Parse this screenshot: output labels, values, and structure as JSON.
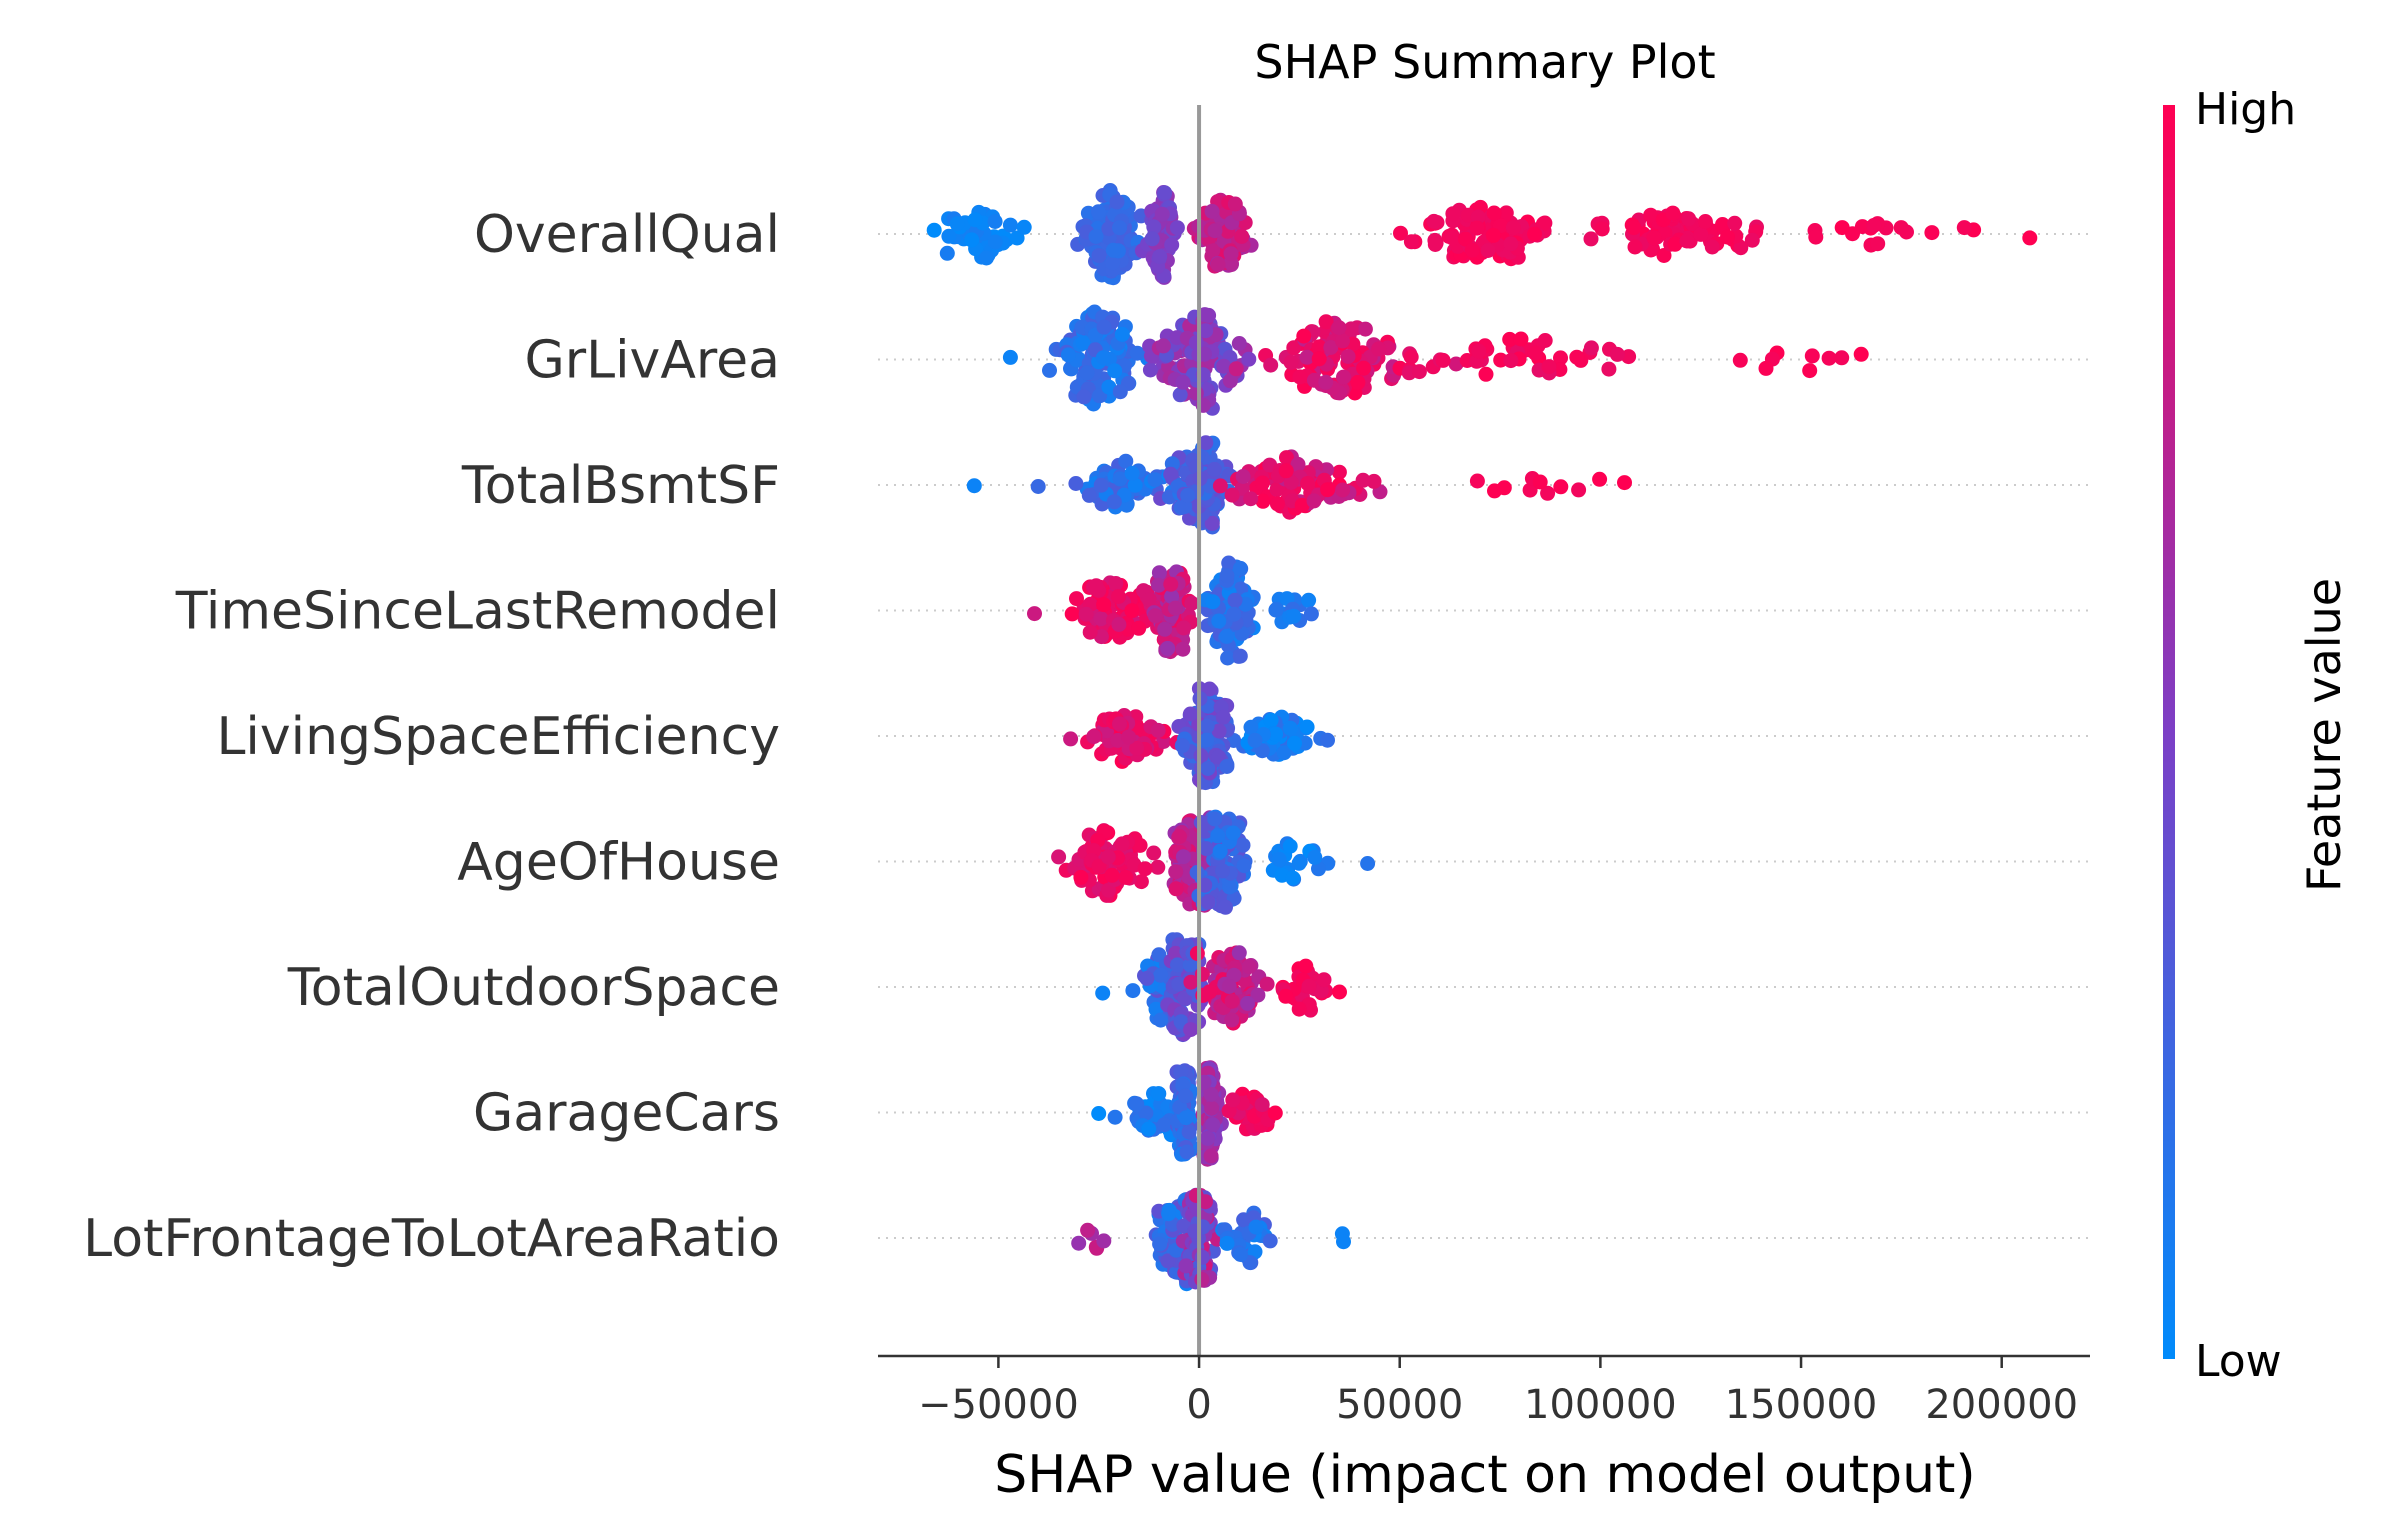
{
  "chart_data": {
    "type": "scatter",
    "subtype": "beeswarm",
    "title": "SHAP Summary Plot",
    "xlabel": "SHAP value (impact on model output)",
    "xlim": [
      -80000,
      222000
    ],
    "xticks": [
      -50000,
      0,
      50000,
      100000,
      150000,
      200000
    ],
    "xtick_labels": [
      "−50000",
      "0",
      "50000",
      "100000",
      "150000",
      "200000"
    ],
    "zero_line": 0,
    "colorbar": {
      "label": "Feature value",
      "high_label": "High",
      "low_label": "Low",
      "low_color": "#008bfb",
      "mid_color": "#7c3fc6",
      "high_color": "#ff0052"
    },
    "features": [
      {
        "name": "OverallQual",
        "min": -66000,
        "max": 207000,
        "spread": 0.4,
        "band_width": 0.35,
        "clusters": [
          {
            "c": -55000,
            "s": 9000,
            "n": 40,
            "v": [
              0.0,
              0.1
            ]
          },
          {
            "c": -22000,
            "s": 5500,
            "n": 110,
            "v": [
              0.15,
              0.3
            ]
          },
          {
            "c": -9000,
            "s": 3000,
            "n": 70,
            "v": [
              0.4,
              0.6
            ]
          },
          {
            "c": 6000,
            "s": 5500,
            "n": 80,
            "v": [
              0.65,
              0.9
            ]
          },
          {
            "c": 68000,
            "s": 14000,
            "n": 100,
            "v": [
              0.92,
              1.0
            ]
          },
          {
            "c": 120000,
            "s": 18000,
            "n": 70,
            "v": [
              0.92,
              1.0
            ]
          },
          {
            "c": 168000,
            "s": 20000,
            "n": 16,
            "v": [
              0.95,
              1.0
            ]
          }
        ]
      },
      {
        "name": "GrLivArea",
        "min": -47000,
        "max": 165000,
        "spread": 0.42,
        "band_width": 0.4,
        "clusters": [
          {
            "c": -25000,
            "s": 8000,
            "n": 120,
            "v": [
              0.05,
              0.3
            ]
          },
          {
            "c": 0,
            "s": 9000,
            "n": 130,
            "v": [
              0.35,
              0.7
            ]
          },
          {
            "c": 35000,
            "s": 14000,
            "n": 110,
            "v": [
              0.75,
              1.0
            ]
          },
          {
            "c": 85000,
            "s": 20000,
            "n": 40,
            "v": [
              0.9,
              1.0
            ]
          },
          {
            "c": 145000,
            "s": 15000,
            "n": 8,
            "v": [
              0.95,
              1.0
            ]
          }
        ]
      },
      {
        "name": "TotalBsmtSF",
        "min": -56000,
        "max": 106000,
        "spread": 0.38,
        "band_width": 0.35,
        "clusters": [
          {
            "c": -20000,
            "s": 12000,
            "n": 60,
            "v": [
              0.05,
              0.3
            ]
          },
          {
            "c": 0,
            "s": 6000,
            "n": 130,
            "v": [
              0.15,
              0.45
            ]
          },
          {
            "c": 25000,
            "s": 14000,
            "n": 100,
            "v": [
              0.75,
              1.0
            ]
          },
          {
            "c": 85000,
            "s": 15000,
            "n": 10,
            "v": [
              0.95,
              1.0
            ]
          }
        ]
      },
      {
        "name": "TimeSinceLastRemodel",
        "min": -41000,
        "max": 28000,
        "spread": 0.42,
        "band_width": 0.38,
        "clusters": [
          {
            "c": -20000,
            "s": 9000,
            "n": 80,
            "v": [
              0.8,
              1.0
            ]
          },
          {
            "c": -7000,
            "s": 3500,
            "n": 90,
            "v": [
              0.6,
              0.95
            ]
          },
          {
            "c": 8000,
            "s": 5000,
            "n": 110,
            "v": [
              0.05,
              0.3
            ]
          },
          {
            "c": 22000,
            "s": 4000,
            "n": 15,
            "v": [
              0.05,
              0.2
            ]
          }
        ]
      },
      {
        "name": "LivingSpaceEfficiency",
        "min": -32000,
        "max": 32000,
        "spread": 0.4,
        "band_width": 0.38,
        "clusters": [
          {
            "c": -18000,
            "s": 8000,
            "n": 70,
            "v": [
              0.8,
              1.0
            ]
          },
          {
            "c": 2000,
            "s": 4500,
            "n": 150,
            "v": [
              0.2,
              0.5
            ]
          },
          {
            "c": 20000,
            "s": 7000,
            "n": 50,
            "v": [
              0.0,
              0.2
            ]
          }
        ]
      },
      {
        "name": "AgeOfHouse",
        "min": -35000,
        "max": 42000,
        "spread": 0.4,
        "band_width": 0.38,
        "clusters": [
          {
            "c": -22000,
            "s": 8000,
            "n": 80,
            "v": [
              0.85,
              1.0
            ]
          },
          {
            "c": -2000,
            "s": 4000,
            "n": 80,
            "v": [
              0.6,
              0.9
            ]
          },
          {
            "c": 6000,
            "s": 4500,
            "n": 110,
            "v": [
              0.1,
              0.4
            ]
          },
          {
            "c": 25000,
            "s": 9000,
            "n": 20,
            "v": [
              0.0,
              0.15
            ]
          }
        ]
      },
      {
        "name": "TotalOutdoorSpace",
        "min": -24000,
        "max": 35000,
        "spread": 0.4,
        "band_width": 0.38,
        "clusters": [
          {
            "c": -8000,
            "s": 6000,
            "n": 70,
            "v": [
              0.05,
              0.4
            ]
          },
          {
            "c": -3000,
            "s": 3000,
            "n": 80,
            "v": [
              0.25,
              0.55
            ]
          },
          {
            "c": 8000,
            "s": 6000,
            "n": 80,
            "v": [
              0.6,
              0.95
            ]
          },
          {
            "c": 25000,
            "s": 5000,
            "n": 30,
            "v": [
              0.9,
              1.0
            ]
          }
        ]
      },
      {
        "name": "GarageCars",
        "min": -25000,
        "max": 19000,
        "spread": 0.42,
        "band_width": 0.38,
        "clusters": [
          {
            "c": -12000,
            "s": 5000,
            "n": 40,
            "v": [
              0.0,
              0.2
            ]
          },
          {
            "c": -3500,
            "s": 1500,
            "n": 130,
            "v": [
              0.1,
              0.35
            ]
          },
          {
            "c": 3000,
            "s": 1500,
            "n": 120,
            "v": [
              0.5,
              0.75
            ]
          },
          {
            "c": 13000,
            "s": 3500,
            "n": 30,
            "v": [
              0.85,
              1.0
            ]
          }
        ]
      },
      {
        "name": "LotFrontageToLotAreaRatio",
        "min": -30000,
        "max": 36000,
        "spread": 0.4,
        "band_width": 0.38,
        "clusters": [
          {
            "c": -25000,
            "s": 4000,
            "n": 5,
            "v": [
              0.6,
              0.9
            ]
          },
          {
            "c": -6000,
            "s": 4500,
            "n": 80,
            "v": [
              0.05,
              0.4
            ]
          },
          {
            "c": 0,
            "s": 3000,
            "n": 120,
            "v": [
              0.3,
              0.85
            ]
          },
          {
            "c": 12000,
            "s": 5000,
            "n": 40,
            "v": [
              0.05,
              0.3
            ]
          },
          {
            "c": 35000,
            "s": 1000,
            "n": 1,
            "v": [
              0.0,
              0.05
            ]
          }
        ]
      }
    ]
  }
}
